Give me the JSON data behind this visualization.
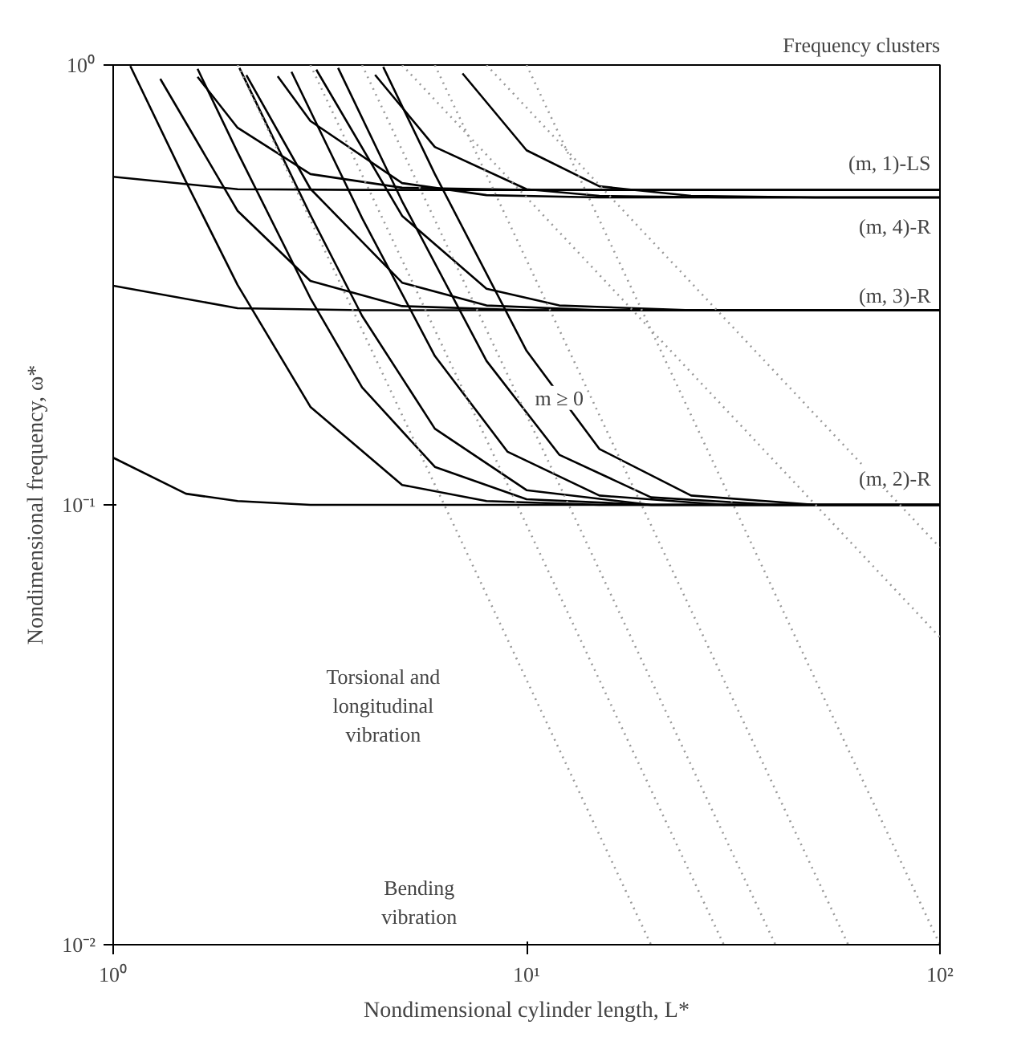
{
  "chart_data": {
    "type": "line",
    "xlabel": "Nondimensional cylinder length, L*",
    "ylabel": "Nondimensional frequency, ω*",
    "log": "xy",
    "grid": false,
    "line_style": "solid",
    "xlim": [
      1,
      100
    ],
    "ylim": [
      0.01,
      1
    ],
    "xticks": [
      {
        "value": 1,
        "label": "10⁰"
      },
      {
        "value": 10,
        "label": "10¹"
      },
      {
        "value": 100,
        "label": "10²"
      }
    ],
    "yticks": [
      {
        "value": 0.01,
        "label": "10⁻²"
      },
      {
        "value": 0.1,
        "label": "10⁻¹"
      },
      {
        "value": 1,
        "label": "10⁰"
      }
    ],
    "series": [
      {
        "color": "#000000",
        "x": [
          1,
          1.5,
          2,
          3,
          5,
          10,
          100
        ],
        "values": [
          0.128,
          0.106,
          0.102,
          0.1,
          0.1,
          0.1,
          0.1
        ]
      },
      {
        "color": "#000000",
        "x": [
          1.1,
          1.5,
          2,
          3,
          5,
          8,
          15,
          100
        ],
        "values": [
          0.995,
          0.543,
          0.316,
          0.167,
          0.111,
          0.102,
          0.1,
          0.1
        ]
      },
      {
        "color": "#000000",
        "x": [
          1.6,
          2,
          3,
          4,
          6,
          10,
          20,
          100
        ],
        "values": [
          0.98,
          0.633,
          0.295,
          0.185,
          0.122,
          0.103,
          0.1,
          0.1
        ]
      },
      {
        "color": "#000000",
        "x": [
          2.02,
          3,
          4,
          6,
          10,
          20,
          100
        ],
        "values": [
          0.985,
          0.456,
          0.269,
          0.149,
          0.108,
          0.1,
          0.1
        ]
      },
      {
        "color": "#000000",
        "x": [
          2.7,
          4,
          6,
          9,
          15,
          30,
          100
        ],
        "values": [
          0.965,
          0.449,
          0.218,
          0.132,
          0.105,
          0.1,
          0.1
        ]
      },
      {
        "color": "#000000",
        "x": [
          3.5,
          5,
          8,
          12,
          20,
          40,
          100
        ],
        "values": [
          0.985,
          0.49,
          0.2125,
          0.13,
          0.104,
          0.1,
          0.1
        ]
      },
      {
        "color": "#000000",
        "x": [
          4.5,
          6,
          10,
          15,
          25,
          50,
          100
        ],
        "values": [
          0.99,
          0.565,
          0.224,
          0.134,
          0.105,
          0.1,
          0.1
        ]
      },
      {
        "color": "#000000",
        "x": [
          1,
          2,
          4,
          100
        ],
        "values": [
          0.315,
          0.28,
          0.277,
          0.277
        ]
      },
      {
        "color": "#000000",
        "x": [
          1.3,
          2,
          3,
          5,
          10,
          100
        ],
        "values": [
          0.93,
          0.466,
          0.323,
          0.283,
          0.277,
          0.277
        ]
      },
      {
        "color": "#000000",
        "x": [
          2.1,
          3,
          5,
          8,
          15,
          100
        ],
        "values": [
          0.948,
          0.523,
          0.32,
          0.284,
          0.277,
          0.277
        ]
      },
      {
        "color": "#000000",
        "x": [
          3.1,
          5,
          8,
          12,
          25,
          100
        ],
        "values": [
          0.976,
          0.454,
          0.31,
          0.284,
          0.277,
          0.277
        ]
      },
      {
        "color": "#000000",
        "x": [
          1,
          2,
          4,
          100
        ],
        "values": [
          0.557,
          0.522,
          0.52,
          0.52
        ]
      },
      {
        "color": "#000000",
        "x": [
          1.6,
          2,
          3,
          5,
          10,
          100
        ],
        "values": [
          0.94,
          0.72,
          0.565,
          0.526,
          0.52,
          0.52
        ]
      },
      {
        "color": "#000000",
        "x": [
          2.5,
          3,
          5,
          8,
          15,
          100
        ],
        "values": [
          0.943,
          0.746,
          0.539,
          0.506,
          0.5,
          0.5
        ]
      },
      {
        "color": "#000000",
        "x": [
          4.3,
          6,
          10,
          15,
          30,
          100
        ],
        "values": [
          0.95,
          0.651,
          0.522,
          0.504,
          0.5,
          0.5
        ]
      },
      {
        "color": "#000000",
        "x": [
          7,
          10,
          15,
          25,
          50,
          100
        ],
        "values": [
          0.957,
          0.64,
          0.53,
          0.504,
          0.5,
          0.5
        ]
      },
      {
        "color": "#999999",
        "line_style": "dotted",
        "x": [
          2,
          20
        ],
        "values": [
          1,
          0.01
        ]
      },
      {
        "color": "#999999",
        "line_style": "dotted",
        "x": [
          3,
          30
        ],
        "values": [
          1,
          0.01
        ]
      },
      {
        "color": "#999999",
        "line_style": "dotted",
        "x": [
          4,
          40
        ],
        "values": [
          1,
          0.01
        ]
      },
      {
        "color": "#999999",
        "line_style": "dotted",
        "x": [
          6,
          60
        ],
        "values": [
          1,
          0.01
        ]
      },
      {
        "color": "#999999",
        "line_style": "dotted",
        "x": [
          10,
          100
        ],
        "values": [
          1,
          0.01
        ]
      },
      {
        "color": "#999999",
        "line_style": "dotted",
        "x": [
          5,
          100
        ],
        "values": [
          1,
          0.05
        ]
      },
      {
        "color": "#999999",
        "line_style": "dotted",
        "x": [
          8,
          100
        ],
        "values": [
          1,
          0.08
        ]
      }
    ],
    "annotations": [
      "(m, 1)-LS",
      "(m, 4)-R",
      "(m, 3)-R",
      "(m, 2)-R",
      "m ≥ 0",
      "Torsional and\nlongitudinal\nvibration",
      "Bending\nvibration",
      "Frequency clusters"
    ]
  }
}
